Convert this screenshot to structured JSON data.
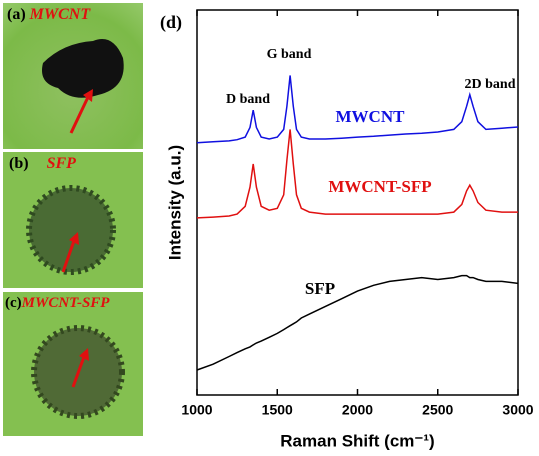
{
  "panels": [
    {
      "label": "(a)",
      "name": "MWCNT"
    },
    {
      "label": "(b)",
      "name": "SFP"
    },
    {
      "label": "(c)",
      "name": "MWCNT-SFP"
    }
  ],
  "chart_data": {
    "type": "line",
    "panel_label": "(d)",
    "x_label": "Raman Shift (cm⁻¹)",
    "y_label": "Intensity (a.u.)",
    "x": [
      1000,
      1100,
      1200,
      1250,
      1300,
      1330,
      1350,
      1370,
      1400,
      1450,
      1500,
      1540,
      1560,
      1580,
      1600,
      1620,
      1650,
      1700,
      1800,
      1900,
      2000,
      2100,
      2200,
      2300,
      2400,
      2500,
      2600,
      2650,
      2680,
      2700,
      2720,
      2750,
      2800,
      2900,
      3000
    ],
    "series": [
      {
        "name": "MWCNT",
        "color": "#1010e0",
        "values": [
          65.5,
          65.8,
          66,
          66.3,
          67,
          69.5,
          74,
          69.5,
          67,
          66.5,
          67,
          69,
          75,
          83,
          75,
          69,
          67,
          66.5,
          66.5,
          66.7,
          67,
          67.2,
          67.5,
          67.8,
          68,
          68.3,
          69,
          71,
          75,
          78,
          75,
          71,
          69,
          69.3,
          69.6
        ]
      },
      {
        "name": "MWCNT-SFP",
        "color": "#e01010",
        "values": [
          46,
          46.2,
          46.5,
          47,
          49,
          54,
          60,
          54,
          49,
          48,
          48.5,
          52,
          61,
          69,
          60,
          52,
          48.5,
          47.5,
          47,
          47,
          47,
          47,
          47,
          47,
          47,
          47,
          47.5,
          49.5,
          53,
          54.5,
          53,
          50,
          48,
          47.5,
          47.5
        ]
      },
      {
        "name": "SFP",
        "color": "#000000",
        "values": [
          6.5,
          8,
          10,
          11,
          12,
          12.5,
          13,
          13.5,
          14,
          15,
          16,
          17,
          17.5,
          18,
          18.5,
          19,
          20,
          21,
          23,
          25,
          27,
          28.5,
          29.5,
          30,
          30.5,
          30,
          30.5,
          31,
          31,
          30.5,
          30.5,
          30,
          29.5,
          29.5,
          29
        ]
      }
    ],
    "annotations": [
      "D band",
      "G band",
      "2D band"
    ],
    "xlim": [
      1000,
      3000
    ],
    "xticks": [
      1000,
      1500,
      2000,
      2500,
      3000
    ],
    "ylim": [
      0,
      100
    ],
    "grid": false
  }
}
